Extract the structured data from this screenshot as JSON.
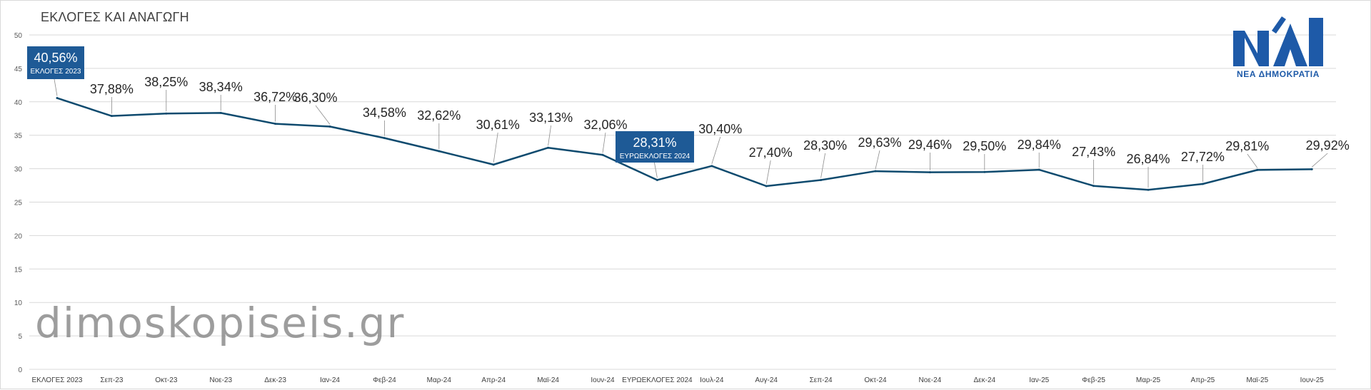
{
  "title": "ΕΚΛΟΓΕΣ ΚΑΙ ΑΝΑΓΩΓΗ",
  "watermark": "dimoskopiseis.gr",
  "logo": {
    "icon": "nd-party-logo-icon",
    "text": "ΝΕΑ ΔΗΜΟΚΡΑΤΙΑ",
    "color": "#1e5aa8"
  },
  "colors": {
    "line": "#0e4a6e",
    "callout": "#1e5a96",
    "grid": "#d9d9d9"
  },
  "chart_data": {
    "type": "line",
    "title": "ΕΚΛΟΓΕΣ ΚΑΙ ΑΝΑΓΩΓΗ",
    "xlabel": "",
    "ylabel": "",
    "ylim": [
      0,
      50
    ],
    "yticks": [
      0,
      5,
      10,
      15,
      20,
      25,
      30,
      35,
      40,
      45,
      50
    ],
    "grid": true,
    "legend": "none",
    "categories": [
      "ΕΚΛΟΓΕΣ 2023",
      "Σεπ-23",
      "Οκτ-23",
      "Νοε-23",
      "Δεκ-23",
      "Ιαν-24",
      "Φεβ-24",
      "Μαρ-24",
      "Απρ-24",
      "Μαϊ-24",
      "Ιουν-24",
      "ΕΥΡΩΕΚΛΟΓΕΣ 2024",
      "Ιουλ-24",
      "Αυγ-24",
      "Σεπ-24",
      "Οκτ-24",
      "Νοε-24",
      "Δεκ-24",
      "Ιαν-25",
      "Φεβ-25",
      "Μαρ-25",
      "Απρ-25",
      "Μαϊ-25",
      "Ιουν-25"
    ],
    "values": [
      40.56,
      37.88,
      38.25,
      38.34,
      36.72,
      36.3,
      34.58,
      32.62,
      30.61,
      33.13,
      32.06,
      28.31,
      30.4,
      27.4,
      28.3,
      29.63,
      29.46,
      29.5,
      29.84,
      27.43,
      26.84,
      27.72,
      29.81,
      29.92
    ],
    "data_labels": [
      "40,56%",
      "37,88%",
      "38,25%",
      "38,34%",
      "36,72%",
      "36,30%",
      "34,58%",
      "32,62%",
      "30,61%",
      "33,13%",
      "32,06%",
      "28,31%",
      "30,40%",
      "27,40%",
      "28,30%",
      "29,63%",
      "29,46%",
      "29,50%",
      "29,84%",
      "27,43%",
      "26,84%",
      "27,72%",
      "29,81%",
      "29,92%"
    ],
    "callouts": [
      {
        "index": 0,
        "value_label": "40,56%",
        "caption": "ΕΚΛΟΓΕΣ 2023"
      },
      {
        "index": 11,
        "value_label": "28,31%",
        "caption": "ΕΥΡΩΕΚΛΟΓΕΣ 2024"
      }
    ]
  }
}
